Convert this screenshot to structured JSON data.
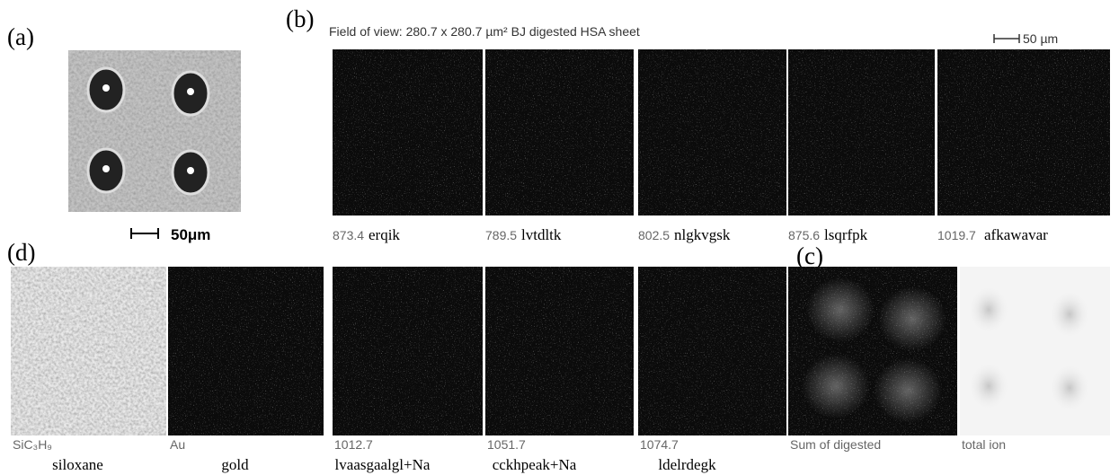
{
  "panel_a": {
    "label": "(a)",
    "scale_bar": "50μm"
  },
  "panel_b": {
    "label": "(b)",
    "header": "Field of view: 280.7 x 280.7 µm²  BJ digested HSA sheet",
    "scale_bar": "50 µm",
    "images": [
      {
        "mass": "873.4",
        "name": "erqik"
      },
      {
        "mass": "789.5",
        "name": "lvtdltk"
      },
      {
        "mass": "802.5",
        "name": "nlgkvgsk"
      },
      {
        "mass": "875.6",
        "name": "lsqrfpk"
      },
      {
        "mass": "1019.7",
        "name": "afkawavar"
      }
    ]
  },
  "panel_c": {
    "label": "(c)",
    "images": [
      {
        "caption": "Sum of digested"
      },
      {
        "caption": "total ion"
      }
    ]
  },
  "panel_d": {
    "label": "(d)",
    "images": [
      {
        "mass": "SiC₃H₉",
        "name": "siloxane"
      },
      {
        "mass": "Au",
        "name": "gold"
      },
      {
        "mass": "1012.7",
        "name": "lvaasgaalgl+Na"
      },
      {
        "mass": "1051.7",
        "name": "cckhpeak+Na"
      },
      {
        "mass": "1074.7",
        "name": "ldelrdegk"
      }
    ]
  }
}
